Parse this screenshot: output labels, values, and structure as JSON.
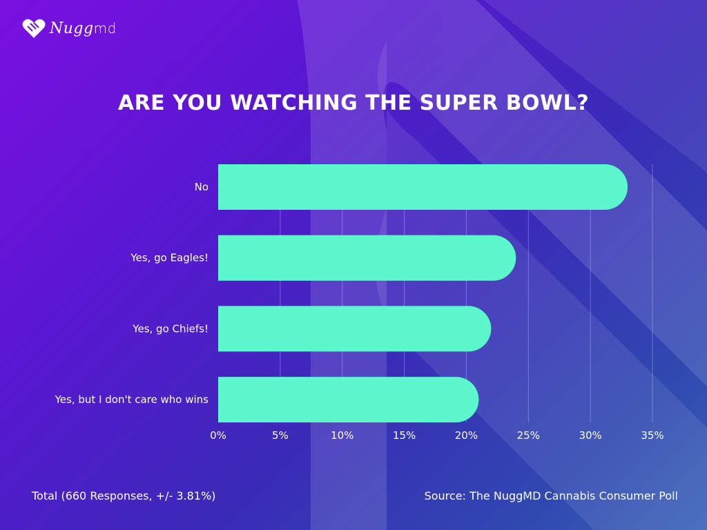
{
  "brand": {
    "logo_text": "Nugg",
    "logo_suffix": "md"
  },
  "colors": {
    "bar": "#5cf7cc",
    "grid": "rgba(255,255,255,0.28)",
    "text": "#ffffff"
  },
  "chart_data": {
    "type": "bar",
    "orientation": "horizontal",
    "title": "ARE YOU WATCHING THE SUPER BOWL?",
    "categories": [
      "No",
      "Yes, go Eagles!",
      "Yes, go Chiefs!",
      "Yes, but I don't care who wins"
    ],
    "values": [
      33,
      24,
      22,
      21
    ],
    "unit": "%",
    "xlim": [
      0,
      35
    ],
    "x_ticks": [
      0,
      5,
      10,
      15,
      20,
      25,
      30,
      35
    ],
    "x_tick_labels": [
      "0%",
      "5%",
      "10%",
      "15%",
      "20%",
      "25%",
      "30%",
      "35%"
    ],
    "grid": true,
    "legend": "none"
  },
  "footer": {
    "total": "Total (660 Responses, +/- 3.81%)",
    "source": "Source: The NuggMD Cannabis Consumer Poll"
  }
}
